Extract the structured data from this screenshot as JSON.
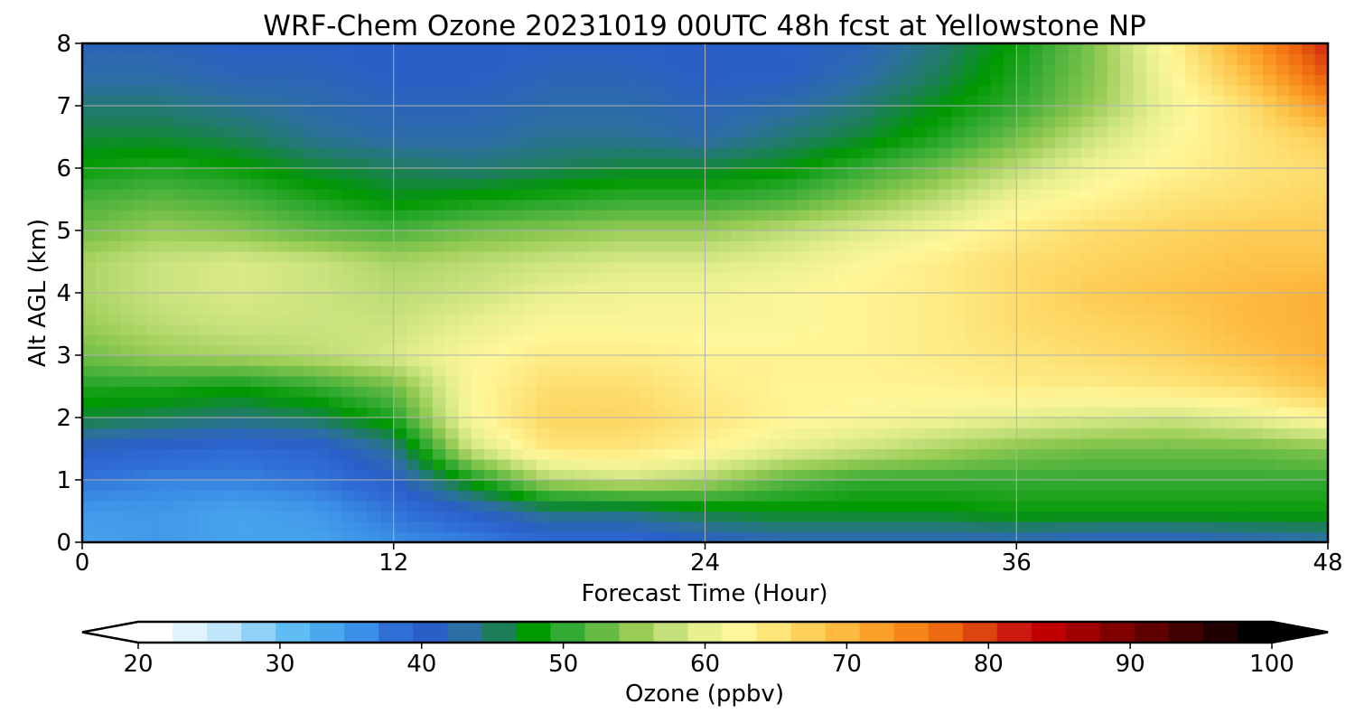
{
  "chart_data": {
    "type": "heatmap",
    "title": "WRF-Chem Ozone  20231019 00UTC 48h fcst at Yellowstone NP",
    "xlabel": "Forecast Time (Hour)",
    "ylabel": "Alt AGL (km)",
    "xlim": [
      0,
      48
    ],
    "ylim": [
      0,
      8
    ],
    "xticks": [
      0,
      12,
      24,
      36,
      48
    ],
    "yticks": [
      0,
      1,
      2,
      3,
      4,
      5,
      6,
      7,
      8
    ],
    "grid": true,
    "colorbar": {
      "label": "Ozone  (ppbv)",
      "min": 20,
      "max": 100,
      "ticks": [
        20,
        30,
        40,
        50,
        60,
        70,
        80,
        90,
        100
      ],
      "extend": "both",
      "colors": [
        "#ffffff",
        "#e1f3fd",
        "#bfe6fb",
        "#8fd1f7",
        "#5fbdf3",
        "#4aa8ee",
        "#3b8fe6",
        "#2f6fd6",
        "#2a5fc8",
        "#2d6fa2",
        "#1d7f5a",
        "#009900",
        "#33aa33",
        "#66bb44",
        "#99cc55",
        "#c4e07a",
        "#e8f08e",
        "#fff799",
        "#fde57a",
        "#fdd15a",
        "#fdba40",
        "#fba12a",
        "#f7861a",
        "#ee6a10",
        "#dd4510",
        "#cc1a10",
        "#c00000",
        "#a00000",
        "#800000",
        "#600000",
        "#400000",
        "#200000",
        "#000000"
      ]
    },
    "x": [
      0,
      3,
      6,
      9,
      12,
      15,
      18,
      21,
      24,
      27,
      30,
      33,
      36,
      39,
      42,
      45,
      48
    ],
    "y": [
      0,
      0.5,
      1,
      1.5,
      2,
      2.5,
      3,
      3.5,
      4,
      4.5,
      5,
      5.5,
      6,
      6.5,
      7,
      7.5,
      8
    ],
    "z": [
      [
        33,
        34,
        33,
        33,
        35,
        36,
        38,
        38,
        40,
        41,
        41,
        41,
        41,
        40,
        40,
        41,
        42
      ],
      [
        34,
        34,
        33,
        34,
        37,
        40,
        44,
        44,
        46,
        47,
        47,
        47,
        48,
        48,
        48,
        48,
        48
      ],
      [
        37,
        36,
        36,
        37,
        40,
        48,
        56,
        58,
        56,
        52,
        50,
        50,
        50,
        50,
        50,
        50,
        50
      ],
      [
        40,
        39,
        38,
        39,
        43,
        58,
        65,
        65,
        63,
        60,
        58,
        56,
        54,
        53,
        53,
        53,
        54
      ],
      [
        46,
        45,
        44,
        45,
        49,
        62,
        67,
        67,
        65,
        63,
        62,
        61,
        60,
        59,
        58,
        60,
        63
      ],
      [
        49,
        49,
        48,
        50,
        53,
        62,
        66,
        66,
        64,
        63,
        63,
        63,
        64,
        64,
        65,
        66,
        69
      ],
      [
        53,
        55,
        56,
        57,
        59,
        62,
        64,
        64,
        63,
        63,
        63,
        64,
        65,
        66,
        67,
        69,
        71
      ],
      [
        55,
        57,
        58,
        58,
        58,
        60,
        62,
        62,
        62,
        62,
        63,
        64,
        66,
        67,
        68,
        70,
        71
      ],
      [
        56,
        58,
        59,
        58,
        57,
        58,
        60,
        61,
        61,
        62,
        63,
        64,
        66,
        68,
        69,
        70,
        71
      ],
      [
        56,
        58,
        59,
        58,
        56,
        57,
        58,
        59,
        59,
        60,
        62,
        64,
        66,
        67,
        68,
        69,
        69
      ],
      [
        53,
        55,
        54,
        52,
        51,
        53,
        54,
        55,
        55,
        57,
        59,
        61,
        64,
        66,
        67,
        68,
        68
      ],
      [
        51,
        52,
        51,
        49,
        47,
        48,
        49,
        50,
        50,
        51,
        54,
        57,
        61,
        63,
        65,
        66,
        67
      ],
      [
        48,
        49,
        48,
        46,
        45,
        44,
        45,
        46,
        46,
        47,
        50,
        53,
        57,
        61,
        63,
        65,
        66
      ],
      [
        46,
        46,
        45,
        43,
        42,
        42,
        43,
        43,
        42,
        44,
        46,
        49,
        53,
        58,
        62,
        65,
        68
      ],
      [
        44,
        44,
        43,
        42,
        41,
        41,
        42,
        42,
        41,
        42,
        44,
        47,
        50,
        55,
        61,
        66,
        74
      ],
      [
        42,
        42,
        41,
        41,
        40,
        40,
        41,
        41,
        40,
        40,
        42,
        45,
        49,
        54,
        62,
        70,
        79
      ],
      [
        41,
        41,
        40,
        40,
        40,
        40,
        40,
        40,
        40,
        40,
        41,
        44,
        48,
        54,
        63,
        73,
        82
      ]
    ]
  }
}
